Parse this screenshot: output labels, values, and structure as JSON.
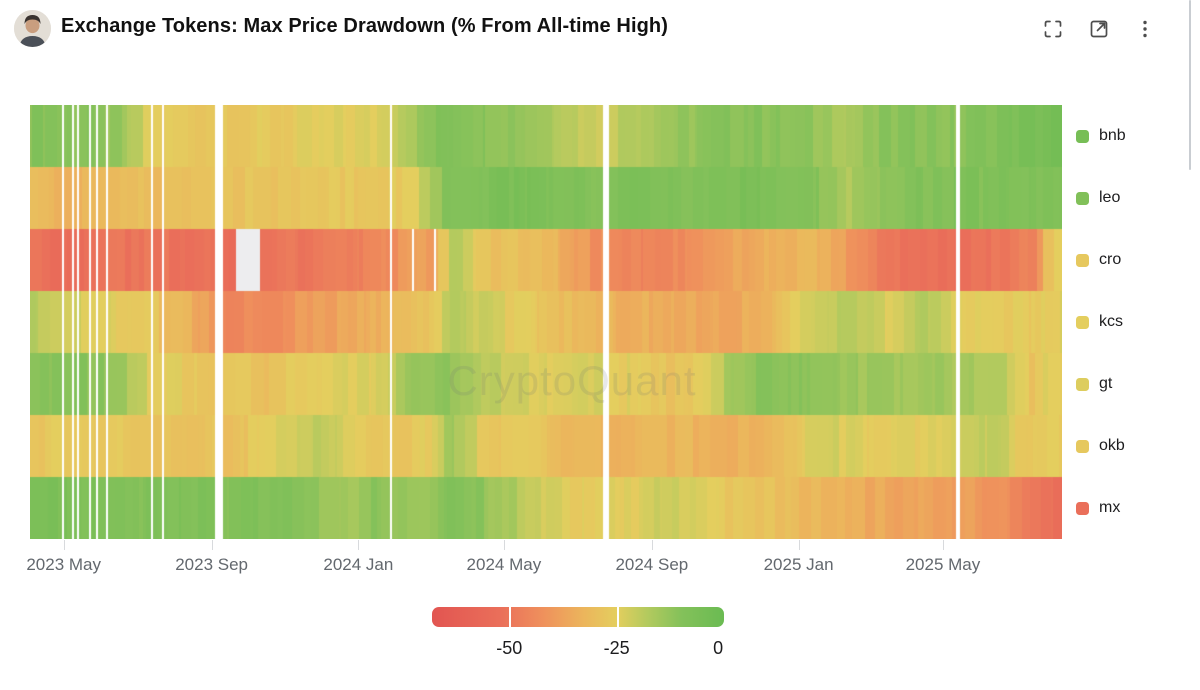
{
  "header": {
    "title": "Exchange Tokens: Max Price Drawdown (% From All-time High)",
    "actions": {
      "fullscreen": "fullscreen",
      "open_external": "open-in-new-window",
      "more": "more-options"
    }
  },
  "chart_data": {
    "type": "heatmap",
    "title": "Exchange Tokens: Max Price Drawdown (% From All-time High)",
    "unit": "% drawdown from all-time high",
    "grid": false,
    "legend_position": "right",
    "watermark": "CryptoQuant",
    "x_range": {
      "start": "2023-04-03",
      "end": "2025-08-08"
    },
    "x_ticks": [
      {
        "date": "2023-05-01",
        "label": "2023 May"
      },
      {
        "date": "2023-09-01",
        "label": "2023 Sep"
      },
      {
        "date": "2024-01-01",
        "label": "2024 Jan"
      },
      {
        "date": "2024-05-01",
        "label": "2024 May"
      },
      {
        "date": "2024-09-01",
        "label": "2024 Sep"
      },
      {
        "date": "2025-01-01",
        "label": "2025 Jan"
      },
      {
        "date": "2025-05-01",
        "label": "2025 May"
      }
    ],
    "rows": [
      "bnb",
      "leo",
      "cro",
      "kcs",
      "gt",
      "okb",
      "mx"
    ],
    "anchor_dates": [
      "2023-04-15",
      "2023-05-15",
      "2023-06-15",
      "2023-07-15",
      "2023-08-15",
      "2023-09-15",
      "2023-10-15",
      "2023-11-15",
      "2023-12-15",
      "2024-01-15",
      "2024-02-15",
      "2024-03-05",
      "2024-03-18",
      "2024-04-15",
      "2024-05-15",
      "2024-06-15",
      "2024-07-15",
      "2024-08-15",
      "2024-09-15",
      "2024-10-15",
      "2024-11-15",
      "2024-12-15",
      "2025-01-15",
      "2025-02-15",
      "2025-03-15",
      "2025-04-15",
      "2025-05-15",
      "2025-06-15",
      "2025-07-15",
      "2025-08-01"
    ],
    "series": [
      {
        "name": "bnb",
        "values": [
          -10,
          -11,
          -14,
          -26,
          -27,
          -26,
          -27,
          -26,
          -25,
          -24,
          -15,
          -10,
          -8,
          -10,
          -12,
          -16,
          -22,
          -17,
          -14,
          -12,
          -10,
          -11,
          -13,
          -16,
          -12,
          -10,
          -12,
          -8,
          -6,
          -5
        ]
      },
      {
        "name": "leo",
        "values": [
          -32,
          -33,
          -32,
          -30,
          -29,
          -29,
          -28,
          -27,
          -27,
          -27,
          -25,
          -14,
          -9,
          -8,
          -7,
          -8,
          -9,
          -8,
          -9,
          -8,
          -7,
          -8,
          -9,
          -18,
          -10,
          -9,
          -8,
          -9,
          -8,
          -9
        ]
      },
      {
        "name": "cro",
        "values": [
          -52,
          -53,
          -51,
          -50,
          -52,
          -53,
          -51,
          -50,
          -49,
          -45,
          -40,
          -38,
          -16,
          -28,
          -30,
          -33,
          -42,
          -46,
          -45,
          -42,
          -36,
          -32,
          -33,
          -40,
          -50,
          -52,
          -52,
          -50,
          -46,
          -27
        ]
      },
      {
        "name": "kcs",
        "values": [
          -19,
          -22,
          -25,
          -28,
          -34,
          -45,
          -44,
          -40,
          -37,
          -34,
          -30,
          -28,
          -15,
          -22,
          -26,
          -30,
          -32,
          -34,
          -35,
          -37,
          -36,
          -30,
          -20,
          -18,
          -24,
          -18,
          -24,
          -26,
          -27,
          -25
        ]
      },
      {
        "name": "gt",
        "values": [
          -10,
          -10,
          -13,
          -25,
          -26,
          -28,
          -29,
          -26,
          -25,
          -24,
          -14,
          -13,
          -11,
          -20,
          -22,
          -24,
          -23,
          -25,
          -28,
          -25,
          -12,
          -10,
          -12,
          -14,
          -15,
          -14,
          -16,
          -18,
          -28,
          -24
        ]
      },
      {
        "name": "okb",
        "values": [
          -27,
          -26,
          -27,
          -28,
          -28,
          -29,
          -27,
          -20,
          -22,
          -26,
          -27,
          -26,
          -14,
          -27,
          -28,
          -30,
          -33,
          -34,
          -32,
          -33,
          -34,
          -33,
          -22,
          -24,
          -26,
          -26,
          -22,
          -20,
          -28,
          -27
        ]
      },
      {
        "name": "mx",
        "values": [
          -8,
          -7,
          -8,
          -9,
          -8,
          -10,
          -9,
          -10,
          -15,
          -12,
          -14,
          -12,
          -8,
          -12,
          -18,
          -24,
          -26,
          -24,
          -22,
          -24,
          -28,
          -30,
          -32,
          -35,
          -36,
          -37,
          -38,
          -42,
          -48,
          -52
        ]
      }
    ],
    "missing_data": [
      {
        "start": "2023-04-30",
        "days": 1,
        "tokens": "all"
      },
      {
        "start": "2023-05-08",
        "days": 1,
        "tokens": "all"
      },
      {
        "start": "2023-05-12",
        "days": 1,
        "tokens": "all"
      },
      {
        "start": "2023-05-22",
        "days": 1,
        "tokens": "all"
      },
      {
        "start": "2023-05-28",
        "days": 1,
        "tokens": "all"
      },
      {
        "start": "2023-06-05",
        "days": 2,
        "tokens": "all"
      },
      {
        "start": "2023-07-13",
        "days": 1,
        "tokens": "all"
      },
      {
        "start": "2023-07-22",
        "days": 2,
        "tokens": "all"
      },
      {
        "start": "2023-09-04",
        "days": 7,
        "tokens": "all"
      },
      {
        "start": "2024-01-27",
        "days": 1,
        "tokens": "all"
      },
      {
        "start": "2024-07-22",
        "days": 5,
        "tokens": "all"
      },
      {
        "start": "2025-05-12",
        "days": 3,
        "tokens": "all"
      },
      {
        "start": "2023-09-21",
        "days": 20,
        "tokens": [
          "cro"
        ],
        "color": "#ededef"
      },
      {
        "start": "2024-02-15",
        "days": 2,
        "tokens": [
          "cro"
        ]
      },
      {
        "start": "2024-03-04",
        "days": 2,
        "tokens": [
          "cro"
        ]
      }
    ],
    "colorbar": {
      "domain": [
        -68,
        0
      ],
      "ticks": [
        -50,
        -25,
        0
      ],
      "tick_labels": [
        "-50",
        "-25",
        "0"
      ],
      "stops": [
        {
          "v": -68,
          "color": "#e25551"
        },
        {
          "v": -52,
          "color": "#ea6f5a"
        },
        {
          "v": -42,
          "color": "#ef915c"
        },
        {
          "v": -33,
          "color": "#ecb45c"
        },
        {
          "v": -25,
          "color": "#e4ce5e"
        },
        {
          "v": -18,
          "color": "#b4ca5e"
        },
        {
          "v": -10,
          "color": "#84c15a"
        },
        {
          "v": 0,
          "color": "#6abb52"
        }
      ]
    }
  }
}
